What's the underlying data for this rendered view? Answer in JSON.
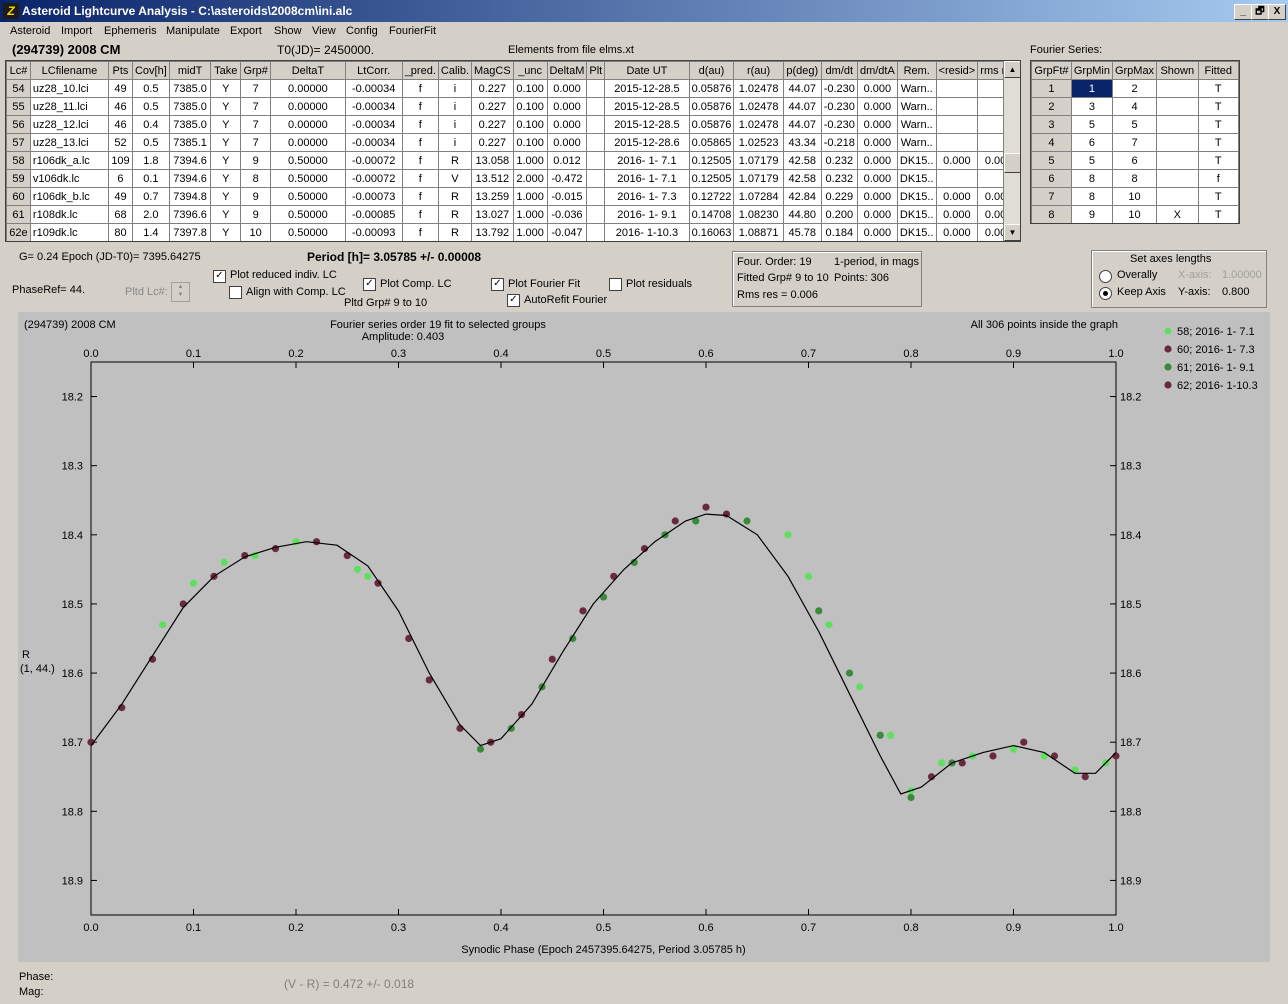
{
  "window": {
    "title": "Asteroid Lightcurve Analysis - C:\\asteroids\\2008cm\\ini.alc",
    "minimize": "_",
    "restore": "🗗",
    "close": "X"
  },
  "menu": [
    "Asteroid",
    "Import",
    "Ephemeris",
    "Manipulate",
    "Export",
    "Show",
    "View",
    "Config",
    "FourierFit"
  ],
  "header": {
    "object": "(294739) 2008 CM",
    "t0": "T0(JD)= 2450000.",
    "elements": "Elements from file elms.xt",
    "fourier_label": "Fourier Series:"
  },
  "lc_table": {
    "columns": [
      "Lc#",
      "LCfilename",
      "Pts",
      "Cov[h]",
      "midT",
      "Take",
      "Grp#",
      "DeltaT",
      "LtCorr.",
      "_pred.",
      "Calib.",
      "MagCS",
      "_unc",
      "DeltaM",
      "Plt",
      "Date UT",
      "d(au)",
      "r(au)",
      "p(deg)",
      "dm/dt",
      "dm/dtA",
      "Rem.",
      "<resid>",
      "rms res"
    ],
    "rows": [
      [
        "54",
        "uz28_10.lci",
        "49",
        "0.5",
        "7385.0",
        "Y",
        "7",
        "0.00000",
        "-0.00034",
        "f",
        "i",
        "0.227",
        "0.100",
        "0.000",
        "",
        "2015-12-28.5",
        "0.05876",
        "1.02478",
        "44.07",
        "-0.230",
        "0.000",
        "Warn..",
        "",
        ""
      ],
      [
        "55",
        "uz28_11.lci",
        "46",
        "0.5",
        "7385.0",
        "Y",
        "7",
        "0.00000",
        "-0.00034",
        "f",
        "i",
        "0.227",
        "0.100",
        "0.000",
        "",
        "2015-12-28.5",
        "0.05876",
        "1.02478",
        "44.07",
        "-0.230",
        "0.000",
        "Warn..",
        "",
        ""
      ],
      [
        "56",
        "uz28_12.lci",
        "46",
        "0.4",
        "7385.0",
        "Y",
        "7",
        "0.00000",
        "-0.00034",
        "f",
        "i",
        "0.227",
        "0.100",
        "0.000",
        "",
        "2015-12-28.5",
        "0.05876",
        "1.02478",
        "44.07",
        "-0.230",
        "0.000",
        "Warn..",
        "",
        ""
      ],
      [
        "57",
        "uz28_13.lci",
        "52",
        "0.5",
        "7385.1",
        "Y",
        "7",
        "0.00000",
        "-0.00034",
        "f",
        "i",
        "0.227",
        "0.100",
        "0.000",
        "",
        "2015-12-28.6",
        "0.05865",
        "1.02523",
        "43.34",
        "-0.218",
        "0.000",
        "Warn..",
        "",
        ""
      ],
      [
        "58",
        "r106dk_a.lc",
        "109",
        "1.8",
        "7394.6",
        "Y",
        "9",
        "0.50000",
        "-0.00072",
        "f",
        "R",
        "13.058",
        "1.000",
        "0.012",
        "",
        "2016- 1- 7.1",
        "0.12505",
        "1.07179",
        "42.58",
        "0.232",
        "0.000",
        "DK15..",
        "0.000",
        "0.005"
      ],
      [
        "59",
        "v106dk.lc",
        "6",
        "0.1",
        "7394.6",
        "Y",
        "8",
        "0.50000",
        "-0.00072",
        "f",
        "V",
        "13.512",
        "2.000",
        "-0.472",
        "",
        "2016- 1- 7.1",
        "0.12505",
        "1.07179",
        "42.58",
        "0.232",
        "0.000",
        "DK15..",
        "",
        ""
      ],
      [
        "60",
        "r106dk_b.lc",
        "49",
        "0.7",
        "7394.8",
        "Y",
        "9",
        "0.50000",
        "-0.00073",
        "f",
        "R",
        "13.259",
        "1.000",
        "-0.015",
        "",
        "2016- 1- 7.3",
        "0.12722",
        "1.07284",
        "42.84",
        "0.229",
        "0.000",
        "DK15..",
        "0.000",
        "0.007"
      ],
      [
        "61",
        "r108dk.lc",
        "68",
        "2.0",
        "7396.6",
        "Y",
        "9",
        "0.50000",
        "-0.00085",
        "f",
        "R",
        "13.027",
        "1.000",
        "-0.036",
        "",
        "2016- 1- 9.1",
        "0.14708",
        "1.08230",
        "44.80",
        "0.200",
        "0.000",
        "DK15..",
        "0.000",
        "0.006"
      ],
      [
        "62e",
        "r109dk.lc",
        "80",
        "1.4",
        "7397.8",
        "Y",
        "10",
        "0.50000",
        "-0.00093",
        "f",
        "R",
        "13.792",
        "1.000",
        "-0.047",
        "",
        "2016- 1-10.3",
        "0.16063",
        "1.08871",
        "45.78",
        "0.184",
        "0.000",
        "DK15..",
        "0.000",
        "0.005"
      ]
    ]
  },
  "fourier_table": {
    "columns": [
      "GrpFt#",
      "GrpMin",
      "GrpMax",
      "Shown",
      "Fitted"
    ],
    "rows": [
      [
        "1",
        "1",
        "2",
        "",
        "T"
      ],
      [
        "2",
        "3",
        "4",
        "",
        "T"
      ],
      [
        "3",
        "5",
        "5",
        "",
        "T"
      ],
      [
        "4",
        "6",
        "7",
        "",
        "T"
      ],
      [
        "5",
        "5",
        "6",
        "",
        "T"
      ],
      [
        "6",
        "8",
        "8",
        "",
        "f"
      ],
      [
        "7",
        "8",
        "10",
        "",
        "T"
      ],
      [
        "8",
        "9",
        "10",
        "X",
        "T"
      ]
    ]
  },
  "controls": {
    "g_epoch": "G= 0.24   Epoch (JD-T0)= 7395.64275",
    "period": "Period [h]= 3.05785 +/- 0.00008",
    "phaseref": "PhaseRef= 44.",
    "pltd_lc": "Pltd Lc#:",
    "plot_reduced": "Plot reduced indiv. LC",
    "align_comp": "Align with Comp. LC",
    "plot_comp": "Plot Comp. LC",
    "pltd_grp": "Pltd Grp#  9  to   10",
    "plot_fourier": "Plot Fourier Fit",
    "autorefit": "AutoRefit Fourier",
    "plot_residuals": "Plot residuals",
    "checks": {
      "plot_reduced": true,
      "align_comp": false,
      "plot_comp": true,
      "plot_fourier": true,
      "autorefit": true,
      "plot_residuals": false
    }
  },
  "fit_info": {
    "line1a": "Four. Order: 19",
    "line1b": "1-period, in mags",
    "line2a": "Fitted Grp# 9 to 10",
    "line2b": "Points: 306",
    "line3": "Rms res     = 0.006"
  },
  "axes_box": {
    "title": "Set axes lengths",
    "overall": "Overally",
    "keep": "Keep Axis",
    "xaxis_label": "X-axis:",
    "xaxis_value": "1.00000",
    "yaxis_label": "Y-axis:",
    "yaxis_value": "0.800"
  },
  "chart_data": {
    "type": "scatter",
    "title": "Fourier series order 19 fit to selected groups",
    "subtitle": "Amplitude: 0.403",
    "corner_left": "(294739) 2008 CM",
    "corner_right": "All 306 points inside the graph",
    "xlabel": "Synodic Phase (Epoch 2457395.64275, Period 3.05785 h)",
    "ylabel_line1": "R",
    "ylabel_line2": "(1, 44.)",
    "xlim": [
      0.0,
      1.0
    ],
    "ylim": [
      18.15,
      18.95
    ],
    "y_inverted": true,
    "xticks": [
      "0.0",
      "0.1",
      "0.2",
      "0.3",
      "0.4",
      "0.5",
      "0.6",
      "0.7",
      "0.8",
      "0.9",
      "1.0"
    ],
    "yticks": [
      "18.2",
      "18.3",
      "18.4",
      "18.5",
      "18.6",
      "18.7",
      "18.8",
      "18.9"
    ],
    "series": [
      {
        "name": "58; 2016- 1- 7.1",
        "color": "#5ee05e",
        "points": [
          [
            0.07,
            18.53
          ],
          [
            0.1,
            18.47
          ],
          [
            0.13,
            18.44
          ],
          [
            0.16,
            18.43
          ],
          [
            0.2,
            18.41
          ],
          [
            0.26,
            18.45
          ],
          [
            0.27,
            18.46
          ],
          [
            0.68,
            18.4
          ],
          [
            0.7,
            18.46
          ],
          [
            0.72,
            18.53
          ],
          [
            0.75,
            18.62
          ],
          [
            0.78,
            18.69
          ],
          [
            0.8,
            18.77
          ],
          [
            0.83,
            18.73
          ],
          [
            0.86,
            18.72
          ],
          [
            0.9,
            18.71
          ],
          [
            0.93,
            18.72
          ],
          [
            0.96,
            18.74
          ],
          [
            0.99,
            18.73
          ]
        ]
      },
      {
        "name": "60; 2016- 1- 7.3",
        "color": "#6b2a3c",
        "points": [
          [
            0.0,
            18.7
          ],
          [
            0.03,
            18.65
          ],
          [
            0.06,
            18.58
          ],
          [
            0.09,
            18.5
          ],
          [
            0.12,
            18.46
          ],
          [
            0.15,
            18.43
          ],
          [
            0.18,
            18.42
          ],
          [
            0.22,
            18.41
          ],
          [
            0.25,
            18.43
          ],
          [
            0.28,
            18.47
          ],
          [
            0.31,
            18.55
          ],
          [
            0.33,
            18.61
          ],
          [
            0.36,
            18.68
          ],
          [
            0.39,
            18.7
          ],
          [
            0.42,
            18.66
          ],
          [
            0.45,
            18.58
          ],
          [
            0.48,
            18.51
          ],
          [
            0.51,
            18.46
          ],
          [
            0.54,
            18.42
          ],
          [
            0.57,
            18.38
          ],
          [
            0.6,
            18.36
          ],
          [
            0.62,
            18.37
          ]
        ]
      },
      {
        "name": "61; 2016- 1- 9.1",
        "color": "#3a8a3a",
        "points": [
          [
            0.38,
            18.71
          ],
          [
            0.41,
            18.68
          ],
          [
            0.44,
            18.62
          ],
          [
            0.47,
            18.55
          ],
          [
            0.5,
            18.49
          ],
          [
            0.53,
            18.44
          ],
          [
            0.56,
            18.4
          ],
          [
            0.59,
            18.38
          ],
          [
            0.64,
            18.38
          ],
          [
            0.71,
            18.51
          ],
          [
            0.74,
            18.6
          ],
          [
            0.77,
            18.69
          ],
          [
            0.8,
            18.78
          ],
          [
            0.84,
            18.73
          ]
        ]
      },
      {
        "name": "62; 2016- 1-10.3",
        "color": "#6b2a3c",
        "points": [
          [
            0.82,
            18.75
          ],
          [
            0.85,
            18.73
          ],
          [
            0.88,
            18.72
          ],
          [
            0.91,
            18.7
          ],
          [
            0.94,
            18.72
          ],
          [
            0.97,
            18.75
          ],
          [
            1.0,
            18.72
          ]
        ]
      }
    ],
    "fit_curve": {
      "color": "#000000",
      "points": [
        [
          0.0,
          18.705
        ],
        [
          0.03,
          18.645
        ],
        [
          0.06,
          18.575
        ],
        [
          0.09,
          18.505
        ],
        [
          0.12,
          18.46
        ],
        [
          0.15,
          18.432
        ],
        [
          0.18,
          18.418
        ],
        [
          0.21,
          18.41
        ],
        [
          0.24,
          18.415
        ],
        [
          0.27,
          18.445
        ],
        [
          0.3,
          18.51
        ],
        [
          0.33,
          18.6
        ],
        [
          0.36,
          18.675
        ],
        [
          0.38,
          18.705
        ],
        [
          0.4,
          18.695
        ],
        [
          0.43,
          18.645
        ],
        [
          0.46,
          18.57
        ],
        [
          0.49,
          18.5
        ],
        [
          0.52,
          18.45
        ],
        [
          0.55,
          18.41
        ],
        [
          0.58,
          18.38
        ],
        [
          0.6,
          18.37
        ],
        [
          0.62,
          18.372
        ],
        [
          0.65,
          18.4
        ],
        [
          0.68,
          18.46
        ],
        [
          0.71,
          18.54
        ],
        [
          0.74,
          18.63
        ],
        [
          0.77,
          18.72
        ],
        [
          0.79,
          18.775
        ],
        [
          0.81,
          18.765
        ],
        [
          0.84,
          18.73
        ],
        [
          0.87,
          18.715
        ],
        [
          0.9,
          18.705
        ],
        [
          0.93,
          18.715
        ],
        [
          0.96,
          18.745
        ],
        [
          0.98,
          18.745
        ],
        [
          1.0,
          18.715
        ]
      ]
    }
  },
  "status": {
    "phase": "Phase:",
    "mag": "Mag:",
    "color_index": "(V - R) = 0.472 +/- 0.018"
  }
}
